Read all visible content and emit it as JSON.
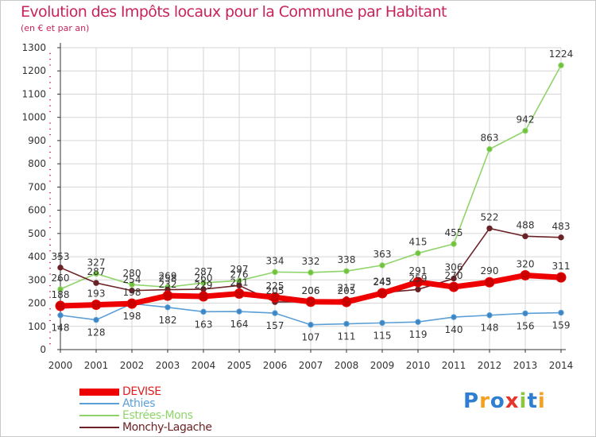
{
  "header": {
    "title": "Evolution des Impôts locaux pour la Commune par Habitant",
    "subtitle": "(en € et par an)"
  },
  "logo": {
    "letters": [
      "P",
      "r",
      "o",
      "x",
      "i",
      "t",
      "i"
    ]
  },
  "colors": {
    "title": "#c8245a",
    "grid": "#d6d6d6",
    "axis": "#333333",
    "labels": "#333333"
  },
  "chart_data": {
    "type": "line",
    "title": "Evolution des Impôts locaux pour la Commune par Habitant",
    "subtitle": "(en € et par an)",
    "xlabel": "",
    "ylabel": "",
    "ylim": [
      0,
      1300
    ],
    "y_ticks": [
      0,
      100,
      200,
      300,
      400,
      500,
      600,
      700,
      800,
      900,
      1000,
      1100,
      1200,
      1300
    ],
    "categories": [
      "2000",
      "2001",
      "2002",
      "2003",
      "2004",
      "2005",
      "2006",
      "2007",
      "2008",
      "2009",
      "2010",
      "2011",
      "2012",
      "2013",
      "2014"
    ],
    "grid": true,
    "legend_position": "bottom-left",
    "series": [
      {
        "name": "Estrées-Mons",
        "color": "#8fd46a",
        "marker": "#6fc23a",
        "width": 1.6,
        "labels": "above",
        "values": [
          260,
          327,
          280,
          269,
          287,
          297,
          334,
          332,
          338,
          363,
          415,
          455,
          863,
          942,
          1224
        ]
      },
      {
        "name": "Athies",
        "color": "#5b9fd6",
        "marker": "#3d86c6",
        "width": 1.6,
        "labels": "below",
        "values": [
          148,
          128,
          198,
          182,
          163,
          164,
          157,
          107,
          111,
          115,
          119,
          140,
          148,
          156,
          159
        ]
      },
      {
        "name": "Monchy-Lagache",
        "color": "#6b2226",
        "marker": "#6b2226",
        "width": 1.6,
        "labels": "above",
        "values": [
          353,
          287,
          254,
          258,
          260,
          276,
          205,
          206,
          217,
          245,
          259,
          306,
          522,
          488,
          483
        ]
      },
      {
        "name": "DEVISE",
        "color": "#ee0000",
        "marker": "#cc0000",
        "width": 7,
        "labels": "above",
        "values": [
          188,
          193,
          198,
          232,
          229,
          241,
          225,
          206,
          205,
          243,
          291,
          270,
          290,
          320,
          311
        ]
      }
    ],
    "legend_order": [
      "DEVISE",
      "Athies",
      "Estrées-Mons",
      "Monchy-Lagache"
    ]
  }
}
